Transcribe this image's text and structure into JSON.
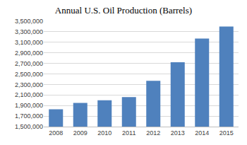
{
  "chart_data": {
    "type": "bar",
    "title": "Annual U.S. Oil Production (Barrels)",
    "categories": [
      "2008",
      "2009",
      "2010",
      "2011",
      "2012",
      "2013",
      "2014",
      "2015"
    ],
    "values": [
      1830000,
      1950000,
      2000000,
      2060000,
      2370000,
      2720000,
      3170000,
      3400000
    ],
    "color": "#4f81bd",
    "ylim": [
      1500000,
      3500000
    ],
    "yticks": [
      {
        "value": 1500000,
        "label": "1,500,000"
      },
      {
        "value": 1700000,
        "label": "1,700,000"
      },
      {
        "value": 1900000,
        "label": "1,900,000"
      },
      {
        "value": 2100000,
        "label": "2,100,000"
      },
      {
        "value": 2300000,
        "label": "2,300,000"
      },
      {
        "value": 2500000,
        "label": "2,500,000"
      },
      {
        "value": 2700000,
        "label": "2,700,000"
      },
      {
        "value": 2900000,
        "label": "2,900,000"
      },
      {
        "value": 3100000,
        "label": "3,100,000"
      },
      {
        "value": 3300000,
        "label": "3,300,000"
      },
      {
        "value": 3500000,
        "label": "3,500,000"
      }
    ],
    "grid": true
  }
}
